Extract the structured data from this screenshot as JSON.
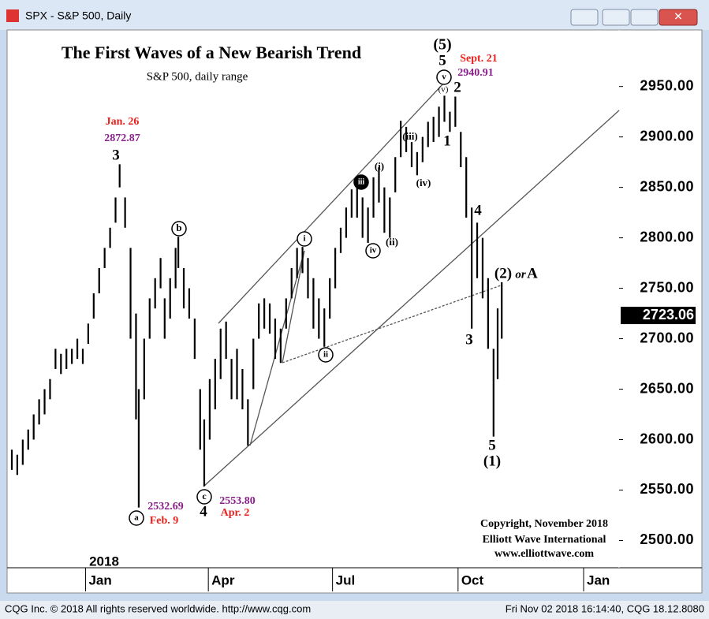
{
  "window": {
    "title": "SPX - S&P 500, Daily",
    "status_left": "CQG Inc. © 2018 All rights reserved worldwide. http://www.cqg.com",
    "status_right": "Fri Nov 02 2018 16:14:40, CQG 18.12.8080",
    "year_label": "2018"
  },
  "chart_data": {
    "type": "range",
    "title": "The First Waves of a New Bearish Trend",
    "subtitle": "S&P 500, daily range",
    "color": "#000000",
    "x": [
      -54,
      -50,
      -46,
      -42,
      -38,
      -34,
      -30,
      -26,
      -22,
      -18,
      -14,
      -10,
      -6,
      -2,
      2,
      6,
      10,
      14,
      18,
      22,
      25,
      29,
      33,
      37,
      39,
      43,
      47,
      51,
      55,
      58,
      62,
      66,
      68,
      72,
      76,
      80,
      84,
      87,
      91,
      95,
      99,
      103,
      107,
      111,
      115,
      119,
      123,
      127,
      131,
      135,
      139,
      143,
      147,
      151,
      155,
      159,
      163,
      167,
      171,
      175,
      179,
      183,
      187,
      191,
      195,
      199,
      203,
      207,
      211,
      215,
      219,
      223,
      227,
      231,
      235,
      239,
      243,
      247,
      251,
      255,
      259,
      263,
      267,
      271,
      275,
      279,
      283,
      287,
      291,
      295,
      299,
      302,
      305
    ],
    "high": [
      2590,
      2585,
      2600,
      2610,
      2625,
      2640,
      2650,
      2660,
      2690,
      2685,
      2690,
      2690,
      2700,
      2690,
      2715,
      2745,
      2770,
      2790,
      2810,
      2840,
      2872.87,
      2840,
      2790,
      2725,
      2650,
      2700,
      2740,
      2760,
      2780,
      2740,
      2760,
      2790,
      2801,
      2770,
      2750,
      2720,
      2650,
      2620,
      2660,
      2680,
      2710,
      2717,
      2680,
      2690,
      2670,
      2640,
      2700,
      2735,
      2740,
      2735,
      2720,
      2710,
      2740,
      2770,
      2790,
      2791,
      2780,
      2760,
      2740,
      2730,
      2760,
      2790,
      2810,
      2830,
      2848,
      2850,
      2840,
      2830,
      2860,
      2870,
      2850,
      2840,
      2880,
      2916,
      2910,
      2895,
      2885,
      2900,
      2915,
      2920,
      2930,
      2940.91,
      2925,
      2940,
      2905,
      2880,
      2830,
      2815,
      2800,
      2760,
      2690,
      2730,
      2756
    ],
    "low": [
      2570,
      2565,
      2575,
      2590,
      2600,
      2615,
      2625,
      2640,
      2670,
      2665,
      2670,
      2675,
      2680,
      2675,
      2695,
      2720,
      2745,
      2770,
      2790,
      2815,
      2850,
      2810,
      2700,
      2620,
      2532.69,
      2640,
      2700,
      2730,
      2750,
      2700,
      2720,
      2750,
      2770,
      2730,
      2720,
      2680,
      2590,
      2553.8,
      2600,
      2630,
      2660,
      2680,
      2640,
      2640,
      2630,
      2594,
      2650,
      2700,
      2710,
      2705,
      2680,
      2676,
      2710,
      2740,
      2760,
      2765,
      2740,
      2710,
      2700,
      2692,
      2720,
      2750,
      2785,
      2800,
      2820,
      2820,
      2800,
      2795,
      2820,
      2835,
      2805,
      2800,
      2845,
      2880,
      2885,
      2870,
      2862,
      2875,
      2890,
      2895,
      2900,
      2915,
      2905,
      2910,
      2870,
      2820,
      2710,
      2760,
      2740,
      2690,
      2603,
      2660,
      2700
    ],
    "xlim": [
      -54,
      391
    ],
    "ylim": [
      2473,
      3024
    ],
    "xticks": [
      {
        "value": 0,
        "label": "Jan"
      },
      {
        "value": 90,
        "label": "Apr"
      },
      {
        "value": 181,
        "label": "Jul"
      },
      {
        "value": 273,
        "label": "Oct"
      },
      {
        "value": 365,
        "label": "Jan"
      }
    ],
    "yticks": [
      {
        "value": 2500,
        "label": "2500.00"
      },
      {
        "value": 2550,
        "label": "2550.00"
      },
      {
        "value": 2600,
        "label": "2600.00"
      },
      {
        "value": 2650,
        "label": "2650.00"
      },
      {
        "value": 2700,
        "label": "2700.00"
      },
      {
        "value": 2750,
        "label": "2750.00"
      },
      {
        "value": 2800,
        "label": "2800.00"
      },
      {
        "value": 2850,
        "label": "2850.00"
      },
      {
        "value": 2900,
        "label": "2900.00"
      },
      {
        "value": 2950,
        "label": "2950.00"
      }
    ],
    "last_value": 2723.06,
    "annotations": [
      "Jan. 26",
      "2872.87",
      "3",
      "b",
      "a",
      "2532.69",
      "Feb. 9",
      "c",
      "4",
      "2553.80",
      "Apr. 2",
      "i",
      "ii",
      "iii",
      "iv",
      "v",
      "(i)",
      "(ii)",
      "(iii)",
      "(iv)",
      "(v)",
      "(5)",
      "5",
      "Sept. 21",
      "2940.91",
      "2",
      "1",
      "4",
      "3",
      "5",
      "(1)",
      "(2)",
      "or",
      "A",
      "Copyright, November 2018",
      "Elliott Wave International",
      "www.elliottwave.com"
    ]
  }
}
